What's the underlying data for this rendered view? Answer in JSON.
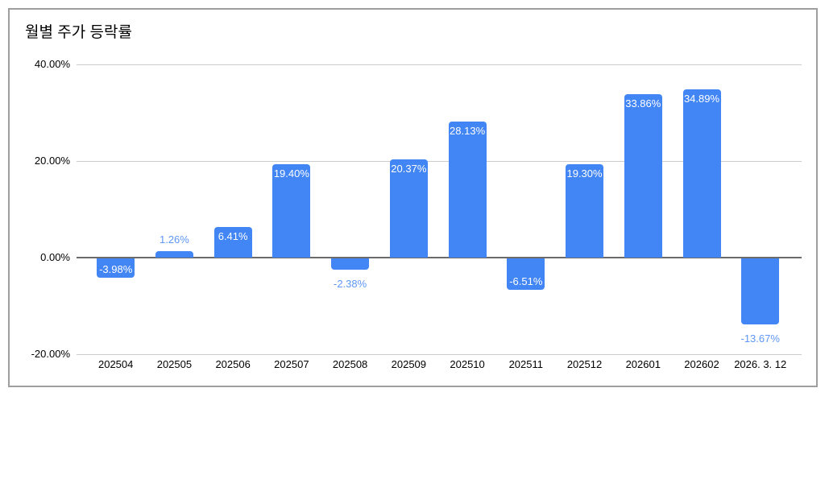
{
  "chart_card": {
    "title": "월별 주가 등락률"
  },
  "chart_data": {
    "type": "bar",
    "title": "월별 주가 등락률",
    "categories": [
      "202504",
      "202505",
      "202506",
      "202507",
      "202508",
      "202509",
      "202510",
      "202511",
      "202512",
      "202601",
      "202602",
      "2026. 3. 12"
    ],
    "values": [
      -3.98,
      1.26,
      6.41,
      19.4,
      -2.38,
      20.37,
      28.13,
      -6.51,
      19.3,
      33.86,
      34.89,
      -13.67
    ],
    "value_labels": [
      "-3.98%",
      "1.26%",
      "6.41%",
      "19.40%",
      "-2.38%",
      "20.37%",
      "28.13%",
      "-6.51%",
      "19.30%",
      "33.86%",
      "34.89%",
      "-13.67%"
    ],
    "label_positions": [
      "inside",
      "outside",
      "inside",
      "inside",
      "outside",
      "inside",
      "inside",
      "inside",
      "inside",
      "inside",
      "inside",
      "outside"
    ],
    "xlabel": "",
    "ylabel": "",
    "ylim": [
      -20,
      40
    ],
    "yticks": [
      {
        "value": 40,
        "label": "40.00%"
      },
      {
        "value": 20,
        "label": "20.00%"
      },
      {
        "value": 0,
        "label": "0.00%"
      },
      {
        "value": -20,
        "label": "-20.00%"
      }
    ],
    "grid": true,
    "legend_position": "none",
    "colors": {
      "bar": "#4285f4",
      "inside_label": "#ffffff",
      "outside_label": "#5e97f6",
      "gridline": "#cccccc",
      "baseline": "#6b6b6b",
      "axis_text": "#000000",
      "card_border": "#9e9e9e"
    }
  }
}
